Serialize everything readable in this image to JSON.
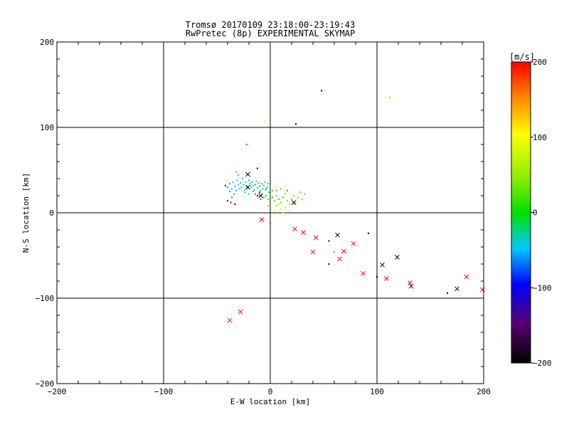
{
  "chart_data": {
    "type": "scatter",
    "title": "Tromsø 20170109 23:18:00-23:19:43",
    "subtitle": "RwPretec (8p) EXPERIMENTAL SKYMAP",
    "xlabel": "E-W location [km]",
    "ylabel": "N-S location [km]",
    "xlim": [
      -200,
      200
    ],
    "ylim": [
      -200,
      200
    ],
    "xticks": [
      -200,
      -100,
      0,
      100,
      200
    ],
    "yticks": [
      -200,
      -100,
      0,
      100,
      200
    ],
    "xtick_labels": [
      "−200",
      "−100",
      "0",
      "100",
      "200"
    ],
    "ytick_labels": [
      "−200",
      "−100",
      "0",
      "100",
      "200"
    ],
    "grid": true,
    "colorbar": {
      "label": "[m/s]",
      "range": [
        -200,
        200
      ],
      "ticks": [
        -200,
        -100,
        0,
        100,
        200
      ],
      "tick_labels": [
        "−200",
        "−100",
        "0",
        "100",
        "200"
      ],
      "colormap": "rainbow (black-purple-blue-cyan-green-yellow-red)"
    },
    "series": [
      {
        "marker": "dot",
        "points": [
          [
            48,
            143,
            -200
          ],
          [
            112,
            135,
            130
          ],
          [
            24,
            104,
            -200
          ],
          [
            -5,
            107,
            110
          ],
          [
            -22,
            80,
            180
          ],
          [
            -12,
            52,
            -200
          ],
          [
            -42,
            32,
            -110
          ],
          [
            -40,
            30,
            -70
          ],
          [
            -38,
            34,
            -60
          ],
          [
            -36,
            28,
            -50
          ],
          [
            -35,
            36,
            -40
          ],
          [
            -33,
            31,
            -55
          ],
          [
            -32,
            26,
            -60
          ],
          [
            -31,
            38,
            -45
          ],
          [
            -30,
            33,
            -50
          ],
          [
            -29,
            28,
            -40
          ],
          [
            -28,
            35,
            -35
          ],
          [
            -27,
            30,
            -45
          ],
          [
            -26,
            40,
            -30
          ],
          [
            -25,
            33,
            -50
          ],
          [
            -24,
            27,
            -40
          ],
          [
            -23,
            36,
            -25
          ],
          [
            -22,
            31,
            -35
          ],
          [
            -21,
            29,
            -45
          ],
          [
            -20,
            38,
            -30
          ],
          [
            -19,
            34,
            -40
          ],
          [
            -18,
            30,
            -35
          ],
          [
            -17,
            36,
            -30
          ],
          [
            -16,
            32,
            -25
          ],
          [
            -15,
            27,
            -30
          ],
          [
            -14,
            33,
            -20
          ],
          [
            -13,
            37,
            -35
          ],
          [
            -12,
            29,
            -25
          ],
          [
            -11,
            35,
            -30
          ],
          [
            -10,
            31,
            -20
          ],
          [
            -9,
            26,
            -25
          ],
          [
            -8,
            34,
            -35
          ],
          [
            -7,
            28,
            -20
          ],
          [
            -6,
            32,
            -30
          ],
          [
            -5,
            36,
            -25
          ],
          [
            -4,
            27,
            -40
          ],
          [
            -3,
            30,
            -30
          ],
          [
            -2,
            34,
            -20
          ],
          [
            -1,
            24,
            10
          ],
          [
            -24,
            24,
            -40
          ],
          [
            -20,
            22,
            -45
          ],
          [
            -16,
            25,
            -50
          ],
          [
            -34,
            22,
            -55
          ],
          [
            -38,
            25,
            -60
          ],
          [
            -30,
            44,
            -55
          ],
          [
            -32,
            48,
            -50
          ],
          [
            -36,
            18,
            -60
          ],
          [
            -40,
            14,
            -150
          ],
          [
            -37,
            12,
            -130
          ],
          [
            -33,
            10,
            -180
          ],
          [
            -12,
            20,
            -200
          ],
          [
            -10,
            24,
            -170
          ],
          [
            -8,
            22,
            20
          ],
          [
            -6,
            18,
            15
          ],
          [
            -4,
            20,
            10
          ],
          [
            -2,
            16,
            30
          ],
          [
            0,
            22,
            20
          ],
          [
            2,
            18,
            0
          ],
          [
            4,
            14,
            25
          ],
          [
            6,
            20,
            30
          ],
          [
            8,
            16,
            10
          ],
          [
            10,
            12,
            35
          ],
          [
            12,
            18,
            15
          ],
          [
            14,
            22,
            40
          ],
          [
            16,
            14,
            30
          ],
          [
            18,
            10,
            50
          ],
          [
            20,
            16,
            25
          ],
          [
            22,
            20,
            45
          ],
          [
            24,
            12,
            60
          ],
          [
            26,
            18,
            35
          ],
          [
            28,
            24,
            40
          ],
          [
            30,
            16,
            50
          ],
          [
            32,
            22,
            30
          ],
          [
            6,
            8,
            60
          ],
          [
            10,
            4,
            75
          ],
          [
            14,
            6,
            70
          ],
          [
            18,
            2,
            85
          ],
          [
            4,
            2,
            90
          ],
          [
            8,
            10,
            70
          ],
          [
            12,
            0,
            90
          ],
          [
            2,
            26,
            15
          ],
          [
            -4,
            28,
            -10
          ],
          [
            6,
            26,
            20
          ],
          [
            10,
            28,
            25
          ],
          [
            16,
            26,
            180
          ],
          [
            -2,
            8,
            140
          ],
          [
            0,
            -12,
            185
          ],
          [
            -14,
            22,
            180
          ],
          [
            -9,
            16,
            190
          ],
          [
            60,
            -46,
            -50
          ],
          [
            55,
            -33,
            -200
          ],
          [
            63,
            -26,
            -200
          ],
          [
            55,
            -60,
            -200
          ],
          [
            92,
            -24,
            -200
          ],
          [
            100,
            -75,
            -200
          ],
          [
            166,
            -94,
            -200
          ]
        ]
      },
      {
        "marker": "x",
        "points": [
          [
            -21,
            45,
            -200
          ],
          [
            -21,
            30,
            -200
          ],
          [
            -9,
            20,
            -200
          ],
          [
            22,
            12,
            -200
          ],
          [
            63,
            -26,
            -200
          ],
          [
            105,
            -61,
            -200
          ],
          [
            119,
            -52,
            -200
          ],
          [
            132,
            -86,
            -200
          ],
          [
            175,
            -89,
            -200
          ],
          [
            -8,
            -8,
            200
          ],
          [
            23,
            -19,
            200
          ],
          [
            31,
            -23,
            200
          ],
          [
            43,
            -29,
            200
          ],
          [
            40,
            -46,
            200
          ],
          [
            69,
            -45,
            200
          ],
          [
            78,
            -36,
            200
          ],
          [
            65,
            -54,
            200
          ],
          [
            87,
            -71,
            200
          ],
          [
            109,
            -77,
            200
          ],
          [
            131,
            -82,
            200
          ],
          [
            184,
            -75,
            200
          ],
          [
            199,
            -90,
            200
          ],
          [
            -28,
            -116,
            200
          ],
          [
            -38,
            -126,
            200
          ]
        ]
      }
    ]
  }
}
